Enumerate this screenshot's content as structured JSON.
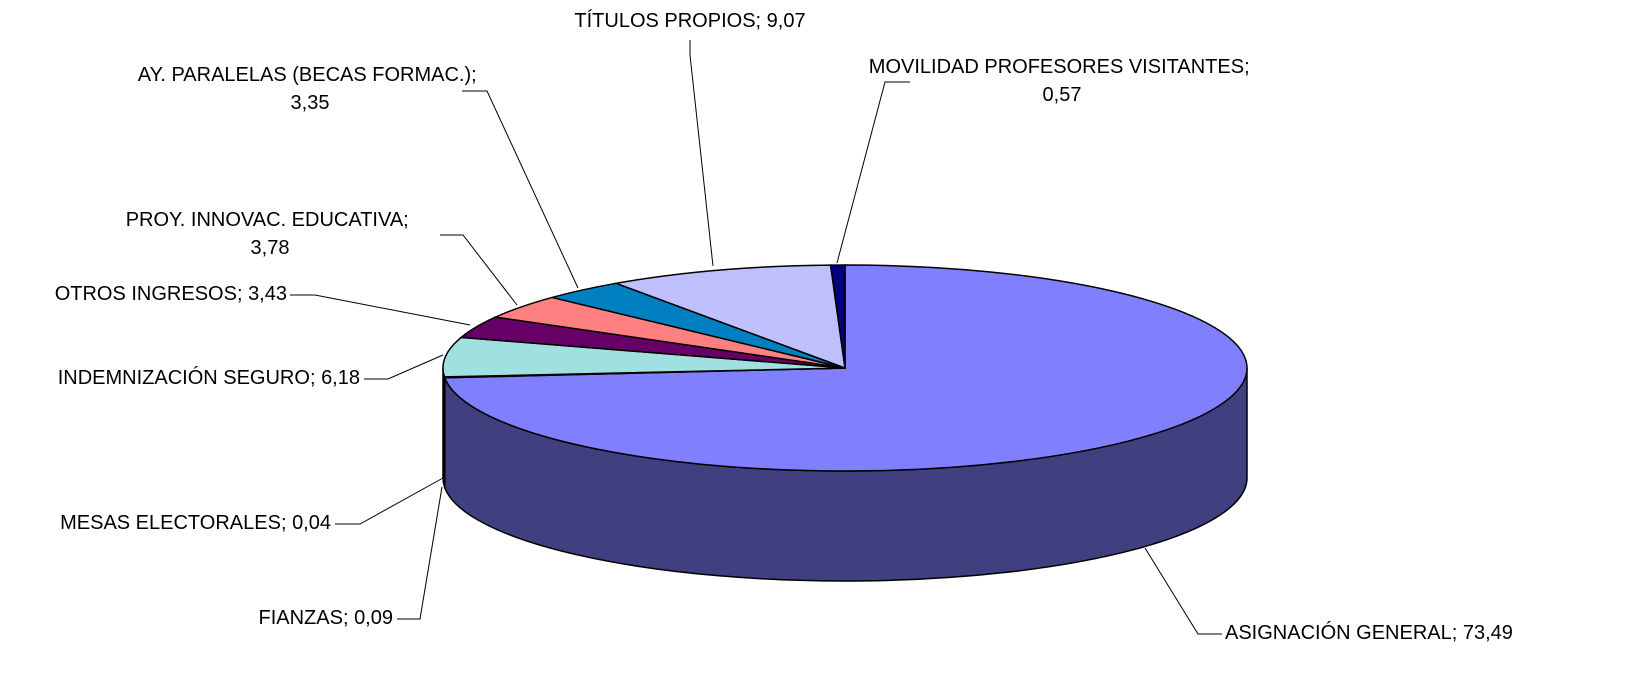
{
  "chart_data": {
    "type": "pie3d",
    "categories": [
      "ASIGNACIÓN GENERAL",
      "FIANZAS",
      "MESAS ELECTORALES",
      "INDEMNIZACIÓN SEGURO",
      "OTROS INGRESOS",
      "PROY. INNOVAC. EDUCATIVA",
      "AY. PARALELAS (BECAS FORMAC.)",
      "TÍTULOS PROPIOS",
      "MOVILIDAD PROFESORES VISITANTES"
    ],
    "values": [
      73.49,
      0.09,
      0.04,
      6.18,
      3.43,
      3.78,
      3.35,
      9.07,
      0.57
    ],
    "value_labels": [
      "73,49",
      "0,09",
      "0,04",
      "6,18",
      "3,43",
      "3,78",
      "3,35",
      "9,07",
      "0,57"
    ],
    "label_separator": "; ",
    "colors": [
      "#8080ff",
      "#993366",
      "#800040",
      "#a0e0e0",
      "#660066",
      "#ff8080",
      "#0080c0",
      "#c0c0ff",
      "#000080"
    ]
  }
}
